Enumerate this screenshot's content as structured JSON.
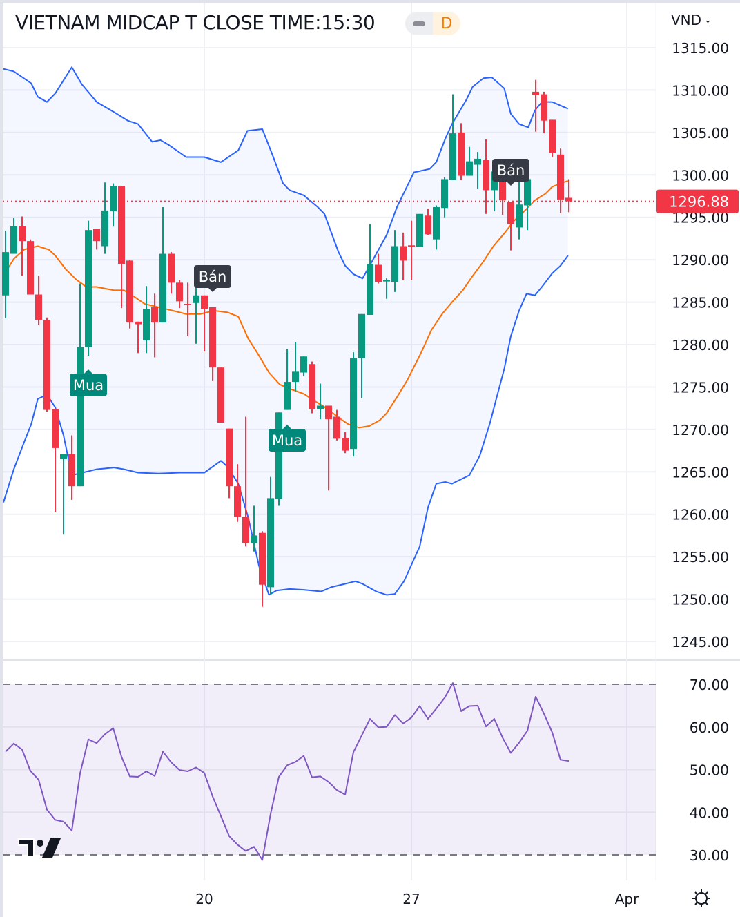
{
  "header": {
    "title": "VIETNAM MIDCAP T CLOSE TIME:15:30",
    "interval": "D",
    "currency": "VND"
  },
  "colors": {
    "up": "#089981",
    "down": "#f23645",
    "bb_band": "#2962ff",
    "bb_basis": "#ff6d00",
    "rsi": "#7e57c2",
    "marker_sell": "#363a45",
    "marker_buy": "#00897b",
    "last_price": "#f23645"
  },
  "chart_data": [
    {
      "type": "candlestick",
      "ylim": [
        1242,
        1318
      ],
      "y_ticks": [
        "1315.00",
        "1310.00",
        "1305.00",
        "1300.00",
        "1295.00",
        "1290.00",
        "1285.00",
        "1280.00",
        "1275.00",
        "1270.00",
        "1265.00",
        "1260.00",
        "1255.00",
        "1250.00",
        "1245.00"
      ],
      "x_ticks": [
        {
          "label": "20",
          "bar": 25
        },
        {
          "label": "27",
          "bar": 50
        },
        {
          "label": "Apr",
          "bar": 76
        }
      ],
      "last_price": "1296.88",
      "candles_ohlc": [
        [
          1285.8,
          1293.4,
          1283.1,
          1290.9
        ],
        [
          1290.7,
          1294.9,
          1290.7,
          1294.0
        ],
        [
          1294.0,
          1295.1,
          1288.1,
          1292.2
        ],
        [
          1292.2,
          1292.4,
          1285.9,
          1285.9
        ],
        [
          1285.9,
          1288.1,
          1282.3,
          1282.9
        ],
        [
          1282.9,
          1283.2,
          1272.1,
          1272.3
        ],
        [
          1272.4,
          1272.4,
          1260.3,
          1267.8
        ],
        [
          1266.5,
          1267.1,
          1257.6,
          1267.1
        ],
        [
          1267.1,
          1269.3,
          1261.7,
          1263.3
        ],
        [
          1263.3,
          1287.2,
          1263.3,
          1279.7
        ],
        [
          1279.7,
          1294.6,
          1278.7,
          1293.5
        ],
        [
          1293.6,
          1293.6,
          1291.2,
          1292.2
        ],
        [
          1291.6,
          1299.1,
          1290.7,
          1295.8
        ],
        [
          1295.7,
          1299.0,
          1293.9,
          1298.7
        ],
        [
          1298.7,
          1298.7,
          1284.3,
          1289.5
        ],
        [
          1289.9,
          1290.0,
          1281.9,
          1282.6
        ],
        [
          1282.7,
          1282.7,
          1279.0,
          1282.4
        ],
        [
          1280.5,
          1286.9,
          1279.0,
          1284.2
        ],
        [
          1284.4,
          1286.0,
          1278.5,
          1282.6
        ],
        [
          1282.6,
          1296.2,
          1282.6,
          1290.7
        ],
        [
          1290.7,
          1290.9,
          1286.0,
          1287.3
        ],
        [
          1287.3,
          1287.6,
          1284.3,
          1285.1
        ],
        [
          1284.8,
          1287.3,
          1281.0,
          1284.7
        ],
        [
          1284.9,
          1286.9,
          1280.1,
          1285.8
        ],
        [
          1285.8,
          1285.8,
          1279.2,
          1284.2
        ],
        [
          1284.4,
          1284.4,
          1275.7,
          1277.3
        ],
        [
          1277.3,
          1277.3,
          1270.8,
          1270.8
        ],
        [
          1270.1,
          1270.1,
          1261.9,
          1263.3
        ],
        [
          1263.3,
          1265.9,
          1259.1,
          1259.7
        ],
        [
          1259.7,
          1271.5,
          1256.2,
          1256.6
        ],
        [
          1256.6,
          1261.0,
          1255.6,
          1257.5
        ],
        [
          1257.8,
          1258.0,
          1249.1,
          1251.7
        ],
        [
          1251.4,
          1264.4,
          1250.5,
          1261.9
        ],
        [
          1261.8,
          1272.0,
          1261.0,
          1272.0
        ],
        [
          1272.3,
          1279.5,
          1272.3,
          1275.6
        ],
        [
          1275.6,
          1280.3,
          1274.5,
          1276.8
        ],
        [
          1276.7,
          1278.6,
          1276.3,
          1278.6
        ],
        [
          1277.7,
          1278.0,
          1271.9,
          1272.4
        ],
        [
          1272.4,
          1275.4,
          1271.2,
          1272.8
        ],
        [
          1272.8,
          1272.8,
          1262.8,
          1271.2
        ],
        [
          1271.5,
          1272.3,
          1268.7,
          1268.9
        ],
        [
          1269.0,
          1269.7,
          1267.2,
          1267.5
        ],
        [
          1267.7,
          1279.1,
          1266.8,
          1278.4
        ],
        [
          1278.4,
          1283.6,
          1273.7,
          1283.6
        ],
        [
          1283.5,
          1294.2,
          1283.5,
          1289.5
        ],
        [
          1289.4,
          1290.7,
          1287.2,
          1287.4
        ],
        [
          1287.5,
          1287.8,
          1285.4,
          1287.6
        ],
        [
          1287.4,
          1293.5,
          1286.2,
          1291.6
        ],
        [
          1291.6,
          1293.2,
          1287.6,
          1289.9
        ],
        [
          1291.7,
          1294.6,
          1287.6,
          1291.6
        ],
        [
          1291.5,
          1295.4,
          1291.5,
          1295.4
        ],
        [
          1295.2,
          1296.0,
          1292.9,
          1293.0
        ],
        [
          1292.4,
          1296.4,
          1291.2,
          1296.2
        ],
        [
          1296.1,
          1299.7,
          1295.0,
          1299.5
        ],
        [
          1299.4,
          1309.5,
          1299.4,
          1304.9
        ],
        [
          1305.0,
          1306.1,
          1299.4,
          1299.9
        ],
        [
          1299.9,
          1303.3,
          1299.9,
          1301.6
        ],
        [
          1301.2,
          1302.7,
          1298.4,
          1301.9
        ],
        [
          1301.8,
          1304.2,
          1295.4,
          1298.2
        ],
        [
          1298.2,
          1300.4,
          1295.7,
          1300.4
        ],
        [
          1300.3,
          1301.2,
          1295.3,
          1297.0
        ],
        [
          1296.8,
          1296.8,
          1291.1,
          1294.2
        ],
        [
          1293.8,
          1300.1,
          1292.4,
          1296.5
        ],
        [
          1296.4,
          1299.5,
          1293.5,
          1299.5
        ],
        [
          1309.8,
          1311.2,
          1305.1,
          1309.4
        ],
        [
          1309.5,
          1309.8,
          1304.9,
          1306.4
        ],
        [
          1306.5,
          1306.5,
          1302.1,
          1302.6
        ],
        [
          1302.4,
          1303.1,
          1295.5,
          1297.1
        ],
        [
          1297.3,
          1299.5,
          1295.6,
          1296.88
        ]
      ],
      "bollinger_upper": [
        [
          0.75,
          1312.5
        ],
        [
          2,
          1312.2
        ],
        [
          4.1,
          1310.8
        ],
        [
          4.9,
          1309.2
        ],
        [
          6,
          1308.6
        ],
        [
          7,
          1309.6
        ],
        [
          9,
          1312.7
        ],
        [
          10.2,
          1310.7
        ],
        [
          12,
          1308.6
        ],
        [
          14.1,
          1307.4
        ],
        [
          15.75,
          1306.4
        ],
        [
          17,
          1306.0
        ],
        [
          18.7,
          1303.9
        ],
        [
          19.7,
          1304.1
        ],
        [
          20.75,
          1303.5
        ],
        [
          22.8,
          1302.1
        ],
        [
          25,
          1302.1
        ],
        [
          27,
          1301.5
        ],
        [
          29.1,
          1302.9
        ],
        [
          30.2,
          1305.2
        ],
        [
          32,
          1305.4
        ],
        [
          33.25,
          1302.3
        ],
        [
          34.5,
          1299.0
        ],
        [
          35.3,
          1298.2
        ],
        [
          37,
          1297.6
        ],
        [
          38.7,
          1296.2
        ],
        [
          39.5,
          1295.4
        ],
        [
          41.2,
          1290.9
        ],
        [
          42,
          1289.3
        ],
        [
          43,
          1288.3
        ],
        [
          44.1,
          1287.8
        ],
        [
          45.3,
          1289.9
        ],
        [
          47,
          1292.9
        ],
        [
          48.25,
          1296.2
        ],
        [
          50.3,
          1300.3
        ],
        [
          52.2,
          1300.7
        ],
        [
          53,
          1301.5
        ],
        [
          54.1,
          1304.3
        ],
        [
          54.9,
          1306.0
        ],
        [
          56.6,
          1308.8
        ],
        [
          57.4,
          1310.4
        ],
        [
          58.7,
          1311.4
        ],
        [
          59.7,
          1311.5
        ],
        [
          61.2,
          1310.2
        ],
        [
          62,
          1307.2
        ],
        [
          63,
          1306.0
        ],
        [
          64.1,
          1305.6
        ],
        [
          64.9,
          1307.6
        ],
        [
          65.75,
          1308.6
        ],
        [
          67,
          1308.6
        ],
        [
          68.9,
          1307.8
        ]
      ],
      "bollinger_lower": [
        [
          0.75,
          1261.4
        ],
        [
          2,
          1265.3
        ],
        [
          3.25,
          1268.5
        ],
        [
          4.1,
          1270.6
        ],
        [
          4.9,
          1273.6
        ],
        [
          6,
          1274.1
        ],
        [
          7,
          1272.6
        ],
        [
          8,
          1269.3
        ],
        [
          9,
          1264.6
        ],
        [
          10.3,
          1264.9
        ],
        [
          12,
          1265.3
        ],
        [
          14.1,
          1265.5
        ],
        [
          15.3,
          1265.3
        ],
        [
          17,
          1264.9
        ],
        [
          19.5,
          1264.8
        ],
        [
          22,
          1264.9
        ],
        [
          25,
          1264.9
        ],
        [
          27,
          1266.3
        ],
        [
          27.8,
          1265.6
        ],
        [
          29.1,
          1263.6
        ],
        [
          30.3,
          1259.6
        ],
        [
          31.6,
          1253.9
        ],
        [
          32.8,
          1250.5
        ],
        [
          33.7,
          1251.0
        ],
        [
          35.3,
          1251.2
        ],
        [
          37,
          1251.1
        ],
        [
          39.1,
          1250.9
        ],
        [
          40.3,
          1251.4
        ],
        [
          42,
          1251.8
        ],
        [
          43.25,
          1252.1
        ],
        [
          44.1,
          1251.8
        ],
        [
          45.75,
          1250.9
        ],
        [
          47,
          1250.5
        ],
        [
          48,
          1250.6
        ],
        [
          49.1,
          1252.1
        ],
        [
          51,
          1256.2
        ],
        [
          52,
          1260.8
        ],
        [
          53,
          1263.6
        ],
        [
          54.1,
          1263.8
        ],
        [
          54.9,
          1263.6
        ],
        [
          57,
          1264.6
        ],
        [
          58.25,
          1266.9
        ],
        [
          59.5,
          1270.8
        ],
        [
          60.3,
          1273.8
        ],
        [
          61.2,
          1277.1
        ],
        [
          62,
          1281.0
        ],
        [
          63,
          1284.0
        ],
        [
          63.9,
          1286.0
        ],
        [
          64.9,
          1285.8
        ],
        [
          65.75,
          1286.8
        ],
        [
          67,
          1288.4
        ],
        [
          68,
          1289.3
        ],
        [
          68.9,
          1290.5
        ]
      ],
      "bollinger_basis": [
        [
          1,
          1288.5
        ],
        [
          2,
          1290.1
        ],
        [
          3.25,
          1291.2
        ],
        [
          4.9,
          1291.6
        ],
        [
          6.2,
          1291.2
        ],
        [
          7,
          1290.5
        ],
        [
          8.25,
          1288.9
        ],
        [
          9.5,
          1287.7
        ],
        [
          10.75,
          1286.8
        ],
        [
          12,
          1286.8
        ],
        [
          14.1,
          1286.4
        ],
        [
          15.3,
          1286.4
        ],
        [
          16.6,
          1285.6
        ],
        [
          17.8,
          1284.8
        ],
        [
          19.5,
          1284.4
        ],
        [
          21.2,
          1284.0
        ],
        [
          22.8,
          1283.6
        ],
        [
          24.5,
          1283.6
        ],
        [
          26.2,
          1284.0
        ],
        [
          27.8,
          1283.8
        ],
        [
          29.1,
          1283.3
        ],
        [
          30.3,
          1280.7
        ],
        [
          31.6,
          1278.7
        ],
        [
          32.8,
          1276.7
        ],
        [
          34.1,
          1275.3
        ],
        [
          35.3,
          1274.8
        ],
        [
          37,
          1274.2
        ],
        [
          38.25,
          1273.4
        ],
        [
          39.9,
          1272.4
        ],
        [
          41.2,
          1271.4
        ],
        [
          42.4,
          1270.6
        ],
        [
          43.7,
          1270.2
        ],
        [
          44.9,
          1270.4
        ],
        [
          46.2,
          1271.1
        ],
        [
          47,
          1271.9
        ],
        [
          48.25,
          1273.8
        ],
        [
          49.5,
          1275.8
        ],
        [
          51.2,
          1279.1
        ],
        [
          52.4,
          1281.7
        ],
        [
          53.7,
          1283.6
        ],
        [
          54.9,
          1285.0
        ],
        [
          56.2,
          1286.4
        ],
        [
          57.4,
          1288.1
        ],
        [
          58.7,
          1289.8
        ],
        [
          59.9,
          1291.6
        ],
        [
          61.2,
          1293.1
        ],
        [
          62.4,
          1294.6
        ],
        [
          63.7,
          1295.8
        ],
        [
          64.9,
          1297.0
        ],
        [
          66.2,
          1297.8
        ],
        [
          67,
          1298.6
        ],
        [
          68,
          1299.0
        ],
        [
          68.9,
          1299.3
        ]
      ],
      "markers": [
        {
          "label": "Mua",
          "bar": 11,
          "kind": "buy"
        },
        {
          "label": "Bán",
          "bar": 26,
          "kind": "sell"
        },
        {
          "label": "Mua",
          "bar": 35,
          "kind": "buy"
        },
        {
          "label": "Bán",
          "bar": 62,
          "kind": "sell"
        }
      ]
    },
    {
      "type": "line",
      "ylim": [
        25,
        75
      ],
      "y_ticks": [
        "70.00",
        "60.00",
        "50.00",
        "40.00",
        "30.00"
      ],
      "overbought": 70,
      "oversold": 30,
      "values": [
        54.2,
        56.1,
        54.7,
        49.7,
        47.6,
        40.6,
        38.2,
        37.8,
        35.7,
        49.1,
        57.1,
        56.2,
        58.3,
        59.7,
        53.0,
        48.4,
        48.3,
        49.6,
        48.5,
        54.2,
        51.7,
        49.9,
        49.6,
        50.5,
        49.2,
        43.7,
        39.1,
        34.4,
        32.4,
        30.9,
        31.9,
        28.8,
        39.6,
        48.3,
        51.0,
        51.8,
        53.2,
        48.2,
        48.4,
        47.1,
        45.2,
        44.1,
        54.1,
        58.0,
        61.9,
        59.9,
        60.0,
        62.8,
        60.8,
        62.2,
        64.9,
        61.9,
        64.3,
        66.8,
        70.3,
        63.7,
        64.9,
        65.0,
        60.1,
        61.9,
        57.5,
        53.9,
        56.3,
        59.1,
        67.1,
        63.1,
        58.7,
        52.3,
        52.0
      ]
    }
  ]
}
